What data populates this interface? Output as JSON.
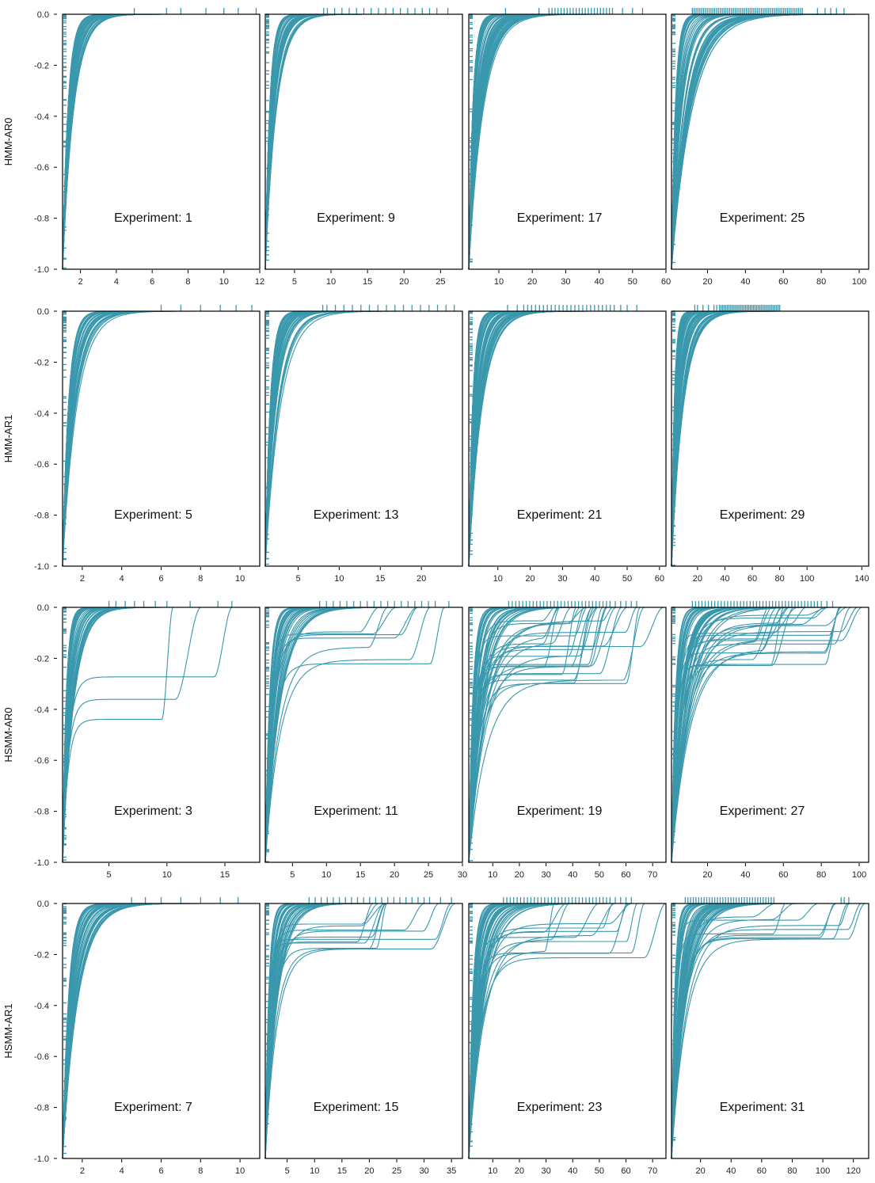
{
  "chart_data": {
    "type": "line",
    "grid": false,
    "series_color": "#3a98ad",
    "ylim": [
      -1.0,
      0.0
    ],
    "y_ticks": [
      "0.0",
      "-0.2",
      "-0.4",
      "-0.6",
      "-0.8",
      "-1.0"
    ],
    "y_tick_values": [
      0.0,
      -0.2,
      -0.4,
      -0.6,
      -0.8,
      -1.0
    ],
    "rows": [
      {
        "row_label": "HMM-AR0",
        "panels": [
          {
            "label": "Experiment: 1",
            "xlim": [
              1,
              12
            ],
            "x_ticks": [
              2,
              4,
              6,
              8,
              10,
              12
            ],
            "x_tick_labels": [
              "2",
              "4",
              "6",
              "8",
              "10",
              "12"
            ],
            "rug": [
              5,
              6.8,
              7.6,
              9,
              10,
              10.8,
              11.8
            ],
            "dense_rug": [],
            "curve_count": 40,
            "tau_range": [
              0.3,
              0.7
            ],
            "n_plateau": 0,
            "plateau_range": [
              0,
              0
            ]
          },
          {
            "label": "Experiment: 9",
            "xlim": [
              1,
              28
            ],
            "x_ticks": [
              5,
              10,
              15,
              20,
              25
            ],
            "x_tick_labels": [
              "5",
              "10",
              "15",
              "20",
              "25"
            ],
            "rug": [
              9,
              26
            ],
            "dense_rug": [
              [
                9.5,
                24.5,
                16
              ]
            ],
            "curve_count": 45,
            "tau_range": [
              0.6,
              1.6
            ],
            "n_plateau": 0,
            "plateau_range": [
              0,
              0
            ]
          },
          {
            "label": "Experiment: 17",
            "xlim": [
              1,
              60
            ],
            "x_ticks": [
              10,
              20,
              30,
              40,
              50,
              60
            ],
            "x_tick_labels": [
              "10",
              "20",
              "30",
              "40",
              "50",
              "60"
            ],
            "rug": [
              12,
              22,
              47,
              50,
              53
            ],
            "dense_rug": [
              [
                25,
                44,
                22
              ]
            ],
            "curve_count": 55,
            "tau_range": [
              1.2,
              4.5
            ],
            "n_plateau": 0,
            "plateau_range": [
              0,
              0
            ]
          },
          {
            "label": "Experiment: 25",
            "xlim": [
              1,
              105
            ],
            "x_ticks": [
              20,
              40,
              60,
              80,
              100
            ],
            "x_tick_labels": [
              "20",
              "40",
              "60",
              "80",
              "100"
            ],
            "rug": [
              78,
              82,
              85,
              88,
              92
            ],
            "dense_rug": [
              [
                12,
                70,
                60
              ]
            ],
            "curve_count": 55,
            "tau_range": [
              2.0,
              11.0
            ],
            "n_plateau": 0,
            "plateau_range": [
              0,
              0
            ]
          }
        ]
      },
      {
        "row_label": "HMM-AR1",
        "panels": [
          {
            "label": "Experiment: 5",
            "xlim": [
              1,
              11
            ],
            "x_ticks": [
              2,
              4,
              6,
              8,
              10
            ],
            "x_tick_labels": [
              "2",
              "4",
              "6",
              "8",
              "10"
            ],
            "rug": [
              6,
              7,
              8,
              9,
              9.8,
              10.6
            ],
            "dense_rug": [],
            "curve_count": 40,
            "tau_range": [
              0.3,
              0.75
            ],
            "n_plateau": 0,
            "plateau_range": [
              0,
              0
            ]
          },
          {
            "label": "Experiment: 13",
            "xlim": [
              1,
              25
            ],
            "x_ticks": [
              5,
              10,
              15,
              20
            ],
            "x_tick_labels": [
              "5",
              "10",
              "15",
              "20"
            ],
            "rug": [
              8,
              24
            ],
            "dense_rug": [
              [
                8.5,
                23,
                15
              ]
            ],
            "curve_count": 45,
            "tau_range": [
              0.6,
              1.9
            ],
            "n_plateau": 0,
            "plateau_range": [
              0,
              0
            ]
          },
          {
            "label": "Experiment: 21",
            "xlim": [
              1,
              62
            ],
            "x_ticks": [
              10,
              20,
              30,
              40,
              50,
              60
            ],
            "x_tick_labels": [
              "10",
              "20",
              "30",
              "40",
              "50",
              "60"
            ],
            "rug": [
              13,
              16,
              48,
              50,
              53
            ],
            "dense_rug": [
              [
                18,
                46,
                24
              ]
            ],
            "curve_count": 55,
            "tau_range": [
              1.2,
              4.2
            ],
            "n_plateau": 0,
            "plateau_range": [
              0,
              0
            ]
          },
          {
            "label": "Experiment: 29",
            "xlim": [
              1,
              145
            ],
            "x_ticks": [
              20,
              40,
              60,
              80,
              100,
              140
            ],
            "x_tick_labels": [
              "20",
              "40",
              "60",
              "80",
              "100",
              "140"
            ],
            "rug": [
              18,
              20,
              24,
              28,
              32,
              34
            ],
            "dense_rug": [
              [
                36,
                80,
                40
              ]
            ],
            "curve_count": 55,
            "tau_range": [
              2.0,
              9.0
            ],
            "n_plateau": 0,
            "plateau_range": [
              0,
              0
            ]
          }
        ]
      },
      {
        "row_label": "HSMM-AR0",
        "panels": [
          {
            "label": "Experiment: 3",
            "xlim": [
              1,
              18
            ],
            "x_ticks": [
              5,
              10,
              15
            ],
            "x_tick_labels": [
              "5",
              "10",
              "15"
            ],
            "rug": [
              5,
              5.6,
              6.4,
              7.2,
              8,
              9,
              10,
              12,
              14.4,
              15.6
            ],
            "dense_rug": [],
            "curve_count": 40,
            "tau_range": [
              0.3,
              1.0
            ],
            "n_plateau": 3,
            "plateau_range": [
              0.26,
              0.5
            ]
          },
          {
            "label": "Experiment: 11",
            "xlim": [
              1,
              30
            ],
            "x_ticks": [
              5,
              10,
              15,
              20,
              25,
              30
            ],
            "x_tick_labels": [
              "5",
              "10",
              "15",
              "20",
              "25",
              "30"
            ],
            "rug": [
              28
            ],
            "dense_rug": [
              [
                9,
                26,
                18
              ]
            ],
            "curve_count": 45,
            "tau_range": [
              0.6,
              2.4
            ],
            "n_plateau": 7,
            "plateau_range": [
              0.09,
              0.26
            ]
          },
          {
            "label": "Experiment: 19",
            "xlim": [
              1,
              75
            ],
            "x_ticks": [
              10,
              20,
              30,
              40,
              50,
              60,
              70
            ],
            "x_tick_labels": [
              "10",
              "20",
              "30",
              "40",
              "50",
              "60",
              "70"
            ],
            "rug": [
              56,
              58,
              60,
              62,
              64
            ],
            "dense_rug": [
              [
                16,
                54,
                30
              ]
            ],
            "curve_count": 55,
            "tau_range": [
              1.5,
              7.0
            ],
            "n_plateau": 26,
            "plateau_range": [
              0.03,
              0.3
            ]
          },
          {
            "label": "Experiment: 27",
            "xlim": [
              1,
              105
            ],
            "x_ticks": [
              20,
              40,
              60,
              80,
              100
            ],
            "x_tick_labels": [
              "20",
              "40",
              "60",
              "80",
              "100"
            ],
            "rug": [
              80,
              83,
              86
            ],
            "dense_rug": [
              [
                12,
                78,
                40
              ]
            ],
            "curve_count": 55,
            "tau_range": [
              2.0,
              10.0
            ],
            "n_plateau": 22,
            "plateau_range": [
              0.02,
              0.27
            ]
          }
        ]
      },
      {
        "row_label": "HSMM-AR1",
        "panels": [
          {
            "label": "Experiment: 7",
            "xlim": [
              1,
              11
            ],
            "x_ticks": [
              2,
              4,
              6,
              8,
              10
            ],
            "x_tick_labels": [
              "2",
              "4",
              "6",
              "8",
              "10"
            ],
            "rug": [
              4.5,
              5.2,
              6,
              7,
              8,
              9,
              9.9
            ],
            "dense_rug": [],
            "curve_count": 40,
            "tau_range": [
              0.3,
              0.8
            ],
            "n_plateau": 0,
            "plateau_range": [
              0,
              0
            ]
          },
          {
            "label": "Experiment: 15",
            "xlim": [
              1,
              37
            ],
            "x_ticks": [
              5,
              10,
              15,
              20,
              25,
              30,
              35
            ],
            "x_tick_labels": [
              "5",
              "10",
              "15",
              "20",
              "25",
              "30",
              "35"
            ],
            "rug": [
              31,
              33,
              35
            ],
            "dense_rug": [
              [
                9,
                30,
                20
              ]
            ],
            "curve_count": 45,
            "tau_range": [
              0.6,
              2.4
            ],
            "n_plateau": 11,
            "plateau_range": [
              0.08,
              0.2
            ]
          },
          {
            "label": "Experiment: 23",
            "xlim": [
              1,
              75
            ],
            "x_ticks": [
              10,
              20,
              30,
              40,
              50,
              60,
              70
            ],
            "x_tick_labels": [
              "10",
              "20",
              "30",
              "40",
              "50",
              "60",
              "70"
            ],
            "rug": [
              56,
              58,
              60,
              62
            ],
            "dense_rug": [
              [
                14,
                54,
                32
              ]
            ],
            "curve_count": 55,
            "tau_range": [
              1.5,
              6.0
            ],
            "n_plateau": 12,
            "plateau_range": [
              0.05,
              0.23
            ]
          },
          {
            "label": "Experiment: 31",
            "xlim": [
              1,
              130
            ],
            "x_ticks": [
              20,
              40,
              60,
              80,
              100,
              120
            ],
            "x_tick_labels": [
              "20",
              "40",
              "60",
              "80",
              "100",
              "120"
            ],
            "rug": [
              112,
              114,
              117
            ],
            "dense_rug": [
              [
                10,
                68,
                34
              ]
            ],
            "curve_count": 55,
            "tau_range": [
              2.0,
              10.0
            ],
            "n_plateau": 10,
            "plateau_range": [
              0.05,
              0.15
            ]
          }
        ]
      }
    ]
  }
}
